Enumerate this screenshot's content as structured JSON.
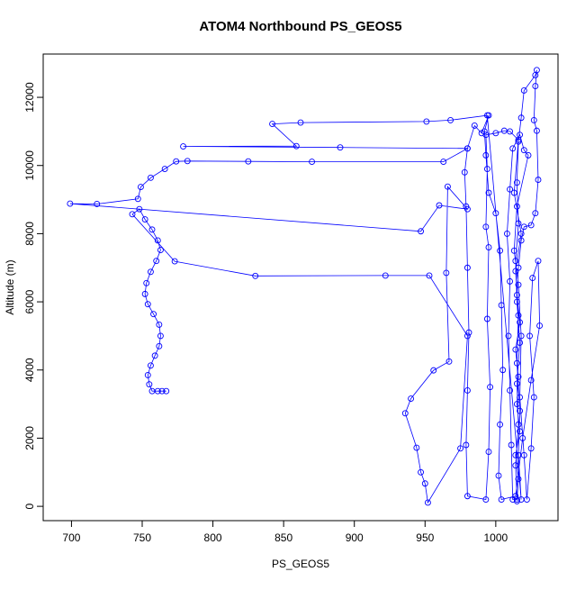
{
  "chart_data": {
    "type": "line",
    "title": "ATOM4 Northbound PS_GEOS5",
    "xlabel": "PS_GEOS5",
    "ylabel": "Altitude (m)",
    "xlim": [
      680,
      1044
    ],
    "ylim": [
      -420,
      13270
    ],
    "xticks": [
      700,
      750,
      800,
      850,
      900,
      950,
      1000
    ],
    "yticks": [
      0,
      2000,
      4000,
      6000,
      8000,
      10000,
      12000
    ],
    "x": [
      1015,
      1016,
      1014,
      1017,
      1015,
      1016,
      1014,
      1017,
      1015,
      1016,
      1018,
      1020,
      1025,
      1028,
      1030,
      1029,
      1027,
      1028,
      1029,
      1028,
      1020,
      1018,
      1016,
      1015,
      1016,
      1014,
      1015,
      1017,
      1015,
      1016,
      1014,
      1015,
      1012,
      1011,
      1010,
      1009,
      1010,
      1008,
      1010,
      1012,
      1017,
      1020,
      1023,
      1015,
      1013,
      1016,
      1018,
      1017,
      1020,
      1022,
      1025,
      1027,
      1024,
      1026,
      1030,
      1031,
      1025,
      1019,
      1014,
      1004,
      1002,
      1003,
      1005,
      1004,
      1003,
      1000,
      995,
      993,
      992,
      995,
      990,
      985,
      980,
      978,
      979,
      980,
      981,
      980,
      979,
      980,
      993,
      995,
      996,
      994,
      995,
      993,
      994,
      993,
      1000,
      1006,
      1010,
      1016,
      1013,
      1018,
      1014,
      1016,
      1015,
      1017,
      1016,
      1018,
      994,
      968,
      951,
      862,
      842,
      859,
      779,
      890,
      980,
      963,
      870,
      825,
      782,
      774,
      766,
      756,
      749,
      747,
      718,
      699,
      947,
      960,
      980,
      966,
      965,
      967,
      956,
      940,
      936,
      944,
      947,
      950,
      952,
      975,
      980,
      953,
      922,
      830,
      773,
      743,
      748,
      752,
      757,
      761,
      763,
      760,
      756,
      753,
      752,
      754,
      758,
      762,
      763,
      762,
      759,
      756,
      754,
      755,
      757,
      761,
      764,
      767
    ],
    "series": [
      {
        "color": "#0000ff",
        "values": [
          150,
          800,
          1500,
          2200,
          3000,
          3800,
          4600,
          5400,
          6200,
          7000,
          7800,
          8200,
          8250,
          8600,
          9580,
          11020,
          11330,
          12330,
          12800,
          12650,
          12200,
          11400,
          10700,
          9500,
          8300,
          7200,
          6000,
          4800,
          3600,
          2400,
          1200,
          200,
          200,
          1800,
          3400,
          5000,
          6600,
          8000,
          9300,
          10500,
          10900,
          10450,
          10300,
          8800,
          7500,
          6500,
          5000,
          3200,
          1500,
          200,
          1700,
          3200,
          5000,
          6700,
          7200,
          5300,
          3700,
          2000,
          300,
          200,
          900,
          2400,
          4000,
          5900,
          7500,
          8600,
          9200,
          10300,
          11000,
          11470,
          10950,
          11170,
          10500,
          9800,
          8800,
          7000,
          5100,
          3400,
          1800,
          300,
          200,
          1600,
          3500,
          5500,
          7600,
          8200,
          9900,
          10900,
          10950,
          11020,
          11000,
          10750,
          9200,
          8000,
          6900,
          5600,
          4200,
          2800,
          1500,
          200,
          11470,
          11330,
          11290,
          11260,
          11220,
          10570,
          10560,
          10530,
          10500,
          10110,
          10110,
          10120,
          10130,
          10120,
          9900,
          9640,
          9370,
          9020,
          8870,
          8880,
          8070,
          8830,
          8720,
          9380,
          6850,
          4250,
          3990,
          3160,
          2730,
          1720,
          1000,
          670,
          110,
          1700,
          5000,
          6770,
          6770,
          6760,
          7190,
          8570,
          8720,
          8420,
          8120,
          7800,
          7520,
          7200,
          6880,
          6550,
          6230,
          5930,
          5640,
          5330,
          5000,
          4700,
          4420,
          4130,
          3850,
          3580,
          3380,
          3380,
          3380,
          3380
        ]
      }
    ]
  }
}
